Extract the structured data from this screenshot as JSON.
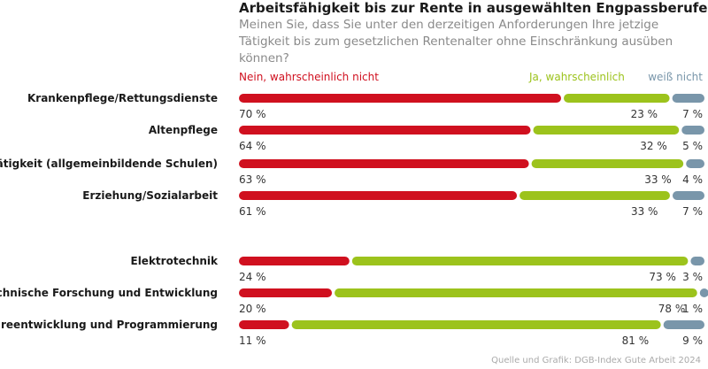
{
  "header": {
    "title": "Arbeitsfähigkeit bis zur Rente in ausgewählten Engpassberufen",
    "subtitle": "Meinen Sie, dass Sie unter den derzeitigen Anforderungen Ihre jetzige Tätigkeit bis zum gesetzlichen Rentenalter ohne Einschränkung ausüben können?"
  },
  "legend": {
    "no": "Nein, wahrscheinlich nicht",
    "yes": "Ja, wahrscheinlich",
    "dontknow": "weiß nicht"
  },
  "colors": {
    "no": "#d0101f",
    "yes": "#9cc31c",
    "dontknow": "#7996aa"
  },
  "chart_data": {
    "type": "bar",
    "orientation": "horizontal",
    "stacked": true,
    "value_unit": "%",
    "categories": [
      "Krankenpflege/Rettungsdienste",
      "Altenpflege",
      "Lehrtätigkeit (allgemeinbildende Schulen)",
      "Erziehung/Sozialarbeit",
      "Elektrotechnik",
      "Technische Forschung und Entwicklung",
      "Softwareentwicklung und Programmierung"
    ],
    "series": [
      {
        "name": "Nein, wahrscheinlich nicht",
        "values": [
          70,
          64,
          63,
          61,
          24,
          20,
          11
        ]
      },
      {
        "name": "Ja, wahrscheinlich",
        "values": [
          23,
          32,
          33,
          33,
          73,
          78,
          81
        ]
      },
      {
        "name": "weiß nicht",
        "values": [
          7,
          5,
          4,
          7,
          3,
          1,
          9
        ]
      }
    ],
    "value_labels": [
      [
        "70 %",
        "23 %",
        "7 %"
      ],
      [
        "64 %",
        "32 %",
        "5 %"
      ],
      [
        "63 %",
        "33 %",
        "4 %"
      ],
      [
        "61 %",
        "33 %",
        "7 %"
      ],
      [
        "24 %",
        "73 %",
        "3 %"
      ],
      [
        "20 %",
        "78 %",
        "1 %"
      ],
      [
        "11 %",
        "81 %",
        "9 %"
      ]
    ],
    "legend_position": "top"
  },
  "footer": {
    "source": "Quelle und Grafik: DGB-Index Gute Arbeit 2024"
  }
}
